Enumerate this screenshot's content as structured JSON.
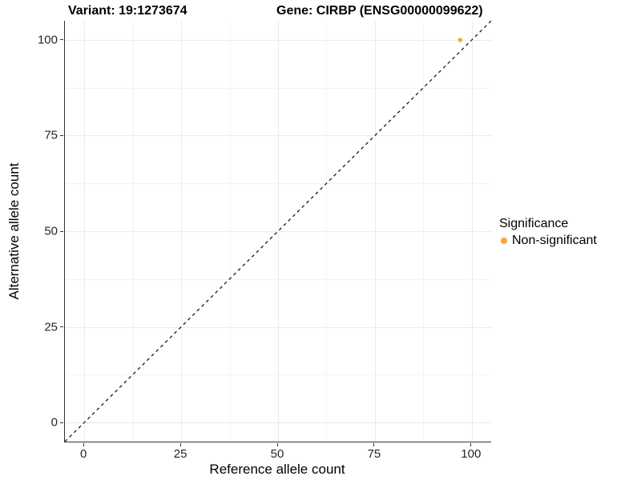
{
  "titles": {
    "variant": "Variant: 19:1273674",
    "gene": "Gene: CIRBP (ENSG00000099622)"
  },
  "chart_data": {
    "type": "scatter",
    "title": "Variant: 19:1273674 / Gene: CIRBP (ENSG00000099622)",
    "xlabel": "Reference allele count",
    "ylabel": "Alternative allele count",
    "xlim": [
      -5,
      105
    ],
    "ylim": [
      -5,
      105
    ],
    "x_ticks": [
      0,
      25,
      50,
      75,
      100
    ],
    "y_ticks": [
      0,
      25,
      50,
      75,
      100
    ],
    "minor_ticks": [
      12.5,
      37.5,
      62.5,
      87.5
    ],
    "grid": "on",
    "identity_line": {
      "type": "dashed",
      "x1": -5,
      "y1": -5,
      "x2": 105,
      "y2": 105
    },
    "series": [
      {
        "name": "Non-significant",
        "points": [
          {
            "x": 97,
            "y": 100
          }
        ]
      }
    ],
    "legend": {
      "position": "right",
      "title": "Significance",
      "items": [
        {
          "label": "Non-significant",
          "color": "#FAA43A"
        }
      ]
    },
    "colors": {
      "point": "#FAA43A",
      "axis_line": "#333333",
      "dashed_line": "#1a1a1a",
      "grid_major": "#ebebeb",
      "grid_minor": "#f4f4f4",
      "tick_label": "#262626"
    }
  }
}
